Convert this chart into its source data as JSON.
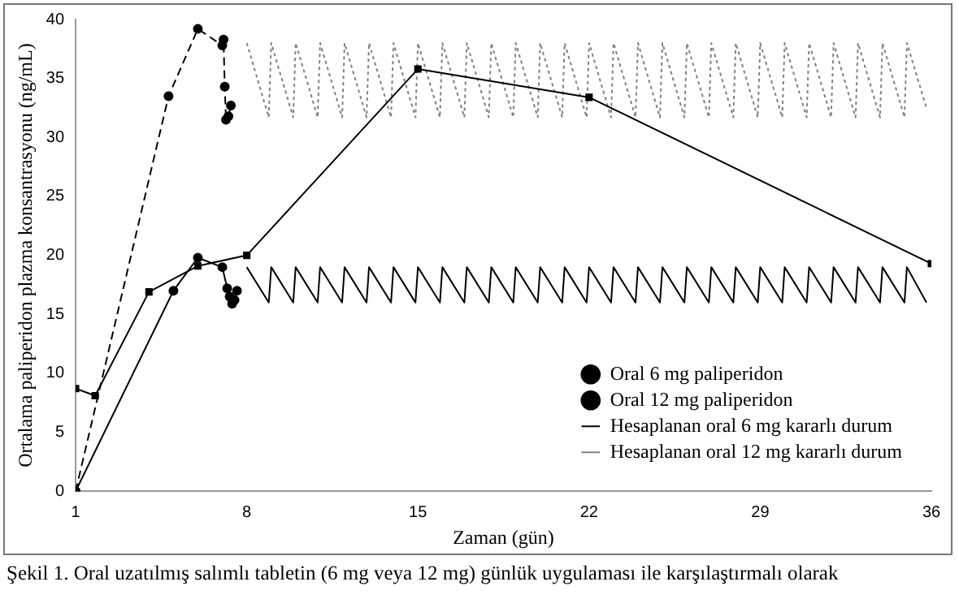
{
  "chart_data": {
    "type": "line",
    "xlabel": "Zaman (gün)",
    "ylabel": "Ortalama paliperidon plazma konsantrasyonu (ng/mL)",
    "xlim": [
      1,
      36
    ],
    "xticks": [
      1,
      8,
      15,
      22,
      29,
      36
    ],
    "ylim": [
      0,
      40
    ],
    "yticks": [
      0,
      5,
      10,
      15,
      20,
      25,
      30,
      35,
      40
    ],
    "grid": false,
    "legend": "bottom right",
    "annotations": [
      "Şekil 1. Oral uzatılmış salımlı tabletin (6 mg veya 12 mg) günlük uygulaması ile karşılaştırmalı olarak"
    ],
    "series": [
      {
        "name": "Oral 6 mg paliperidon",
        "color": "#000000",
        "marker": "circle",
        "line_style": "solid",
        "x": [
          1,
          5,
          6,
          7,
          7.2,
          7.3,
          7.4,
          7.5,
          7.6
        ],
        "values": [
          0,
          17,
          19.8,
          19,
          17.2,
          16.5,
          15.9,
          16.2,
          17
        ]
      },
      {
        "name": "Oral 12 mg paliperidon",
        "color": "#000000",
        "marker": "circle",
        "line_style": "dashed",
        "x": [
          1,
          4.8,
          6,
          7,
          7.05,
          7.1,
          7.15,
          7.25,
          7.35
        ],
        "values": [
          0,
          33.5,
          39.2,
          37.8,
          38.3,
          34.3,
          31.5,
          31.8,
          32.7
        ]
      },
      {
        "color": "#000000",
        "marker": "square",
        "line_style": "solid",
        "x": [
          1,
          1.8,
          4,
          6,
          8,
          15,
          22,
          36
        ],
        "values": [
          8.7,
          8.1,
          16.9,
          19.1,
          20,
          35.8,
          33.4,
          19.3
        ]
      },
      {
        "name": "Hesaplanan oral 6 mg kararlı durum",
        "color": "#000000",
        "marker": "none",
        "line_style": "solid",
        "x": [
          8,
          8.9,
          9,
          9.9,
          10,
          10.9,
          11,
          11.9,
          12,
          12.9,
          13,
          13.9,
          14,
          14.9,
          15,
          15.9,
          16,
          16.9,
          17,
          17.9,
          18,
          18.9,
          19,
          19.9,
          20,
          20.9,
          21,
          21.9,
          22,
          22.9,
          23,
          23.9,
          24,
          24.9,
          25,
          25.9,
          26,
          26.9,
          27,
          27.9,
          28,
          28.9,
          29,
          29.9,
          30,
          30.9,
          31,
          31.9,
          32,
          32.9,
          33,
          33.9,
          34,
          34.9,
          35,
          35.8
        ],
        "values": [
          19,
          16,
          19,
          16,
          19,
          16,
          19,
          16,
          19,
          16,
          19,
          16,
          19,
          16,
          19,
          16,
          19,
          16,
          19,
          16,
          19,
          16,
          19,
          16,
          19,
          16,
          19,
          16,
          19,
          16,
          19,
          16,
          19,
          16,
          19,
          16,
          19,
          16,
          19,
          16,
          19,
          16,
          19,
          16,
          19,
          16,
          19,
          16,
          19,
          16,
          19,
          16,
          19,
          16,
          19,
          16
        ]
      },
      {
        "name": "Hesaplanan oral 12 mg kararlı durum",
        "color": "#808080",
        "marker": "none",
        "line_style": "dotted",
        "x": [
          8,
          8.9,
          9,
          9.9,
          10,
          10.9,
          11,
          11.9,
          12,
          12.9,
          13,
          13.9,
          14,
          14.9,
          15,
          15.9,
          16,
          16.9,
          17,
          17.9,
          18,
          18.9,
          19,
          19.9,
          20,
          20.9,
          21,
          21.9,
          22,
          22.9,
          23,
          23.9,
          24,
          24.9,
          25,
          25.9,
          26,
          26.9,
          27,
          27.9,
          28,
          28.9,
          29,
          29.9,
          30,
          30.9,
          31,
          31.9,
          32,
          32.9,
          33,
          33.9,
          34,
          34.9,
          35,
          35.8
        ],
        "values": [
          38,
          31.7,
          38,
          31.7,
          38,
          31.7,
          38,
          31.7,
          38,
          31.7,
          38,
          31.7,
          38,
          31.7,
          38,
          31.7,
          38,
          31.7,
          38,
          31.7,
          38,
          31.7,
          38,
          31.7,
          38,
          31.7,
          38,
          31.7,
          38,
          31.7,
          38,
          31.7,
          38,
          31.7,
          38,
          31.7,
          38,
          31.7,
          38,
          31.7,
          38,
          31.7,
          38,
          31.7,
          38,
          31.7,
          38,
          31.7,
          38,
          31.7,
          38,
          31.7,
          38,
          31.7,
          38,
          32.5
        ]
      }
    ]
  }
}
